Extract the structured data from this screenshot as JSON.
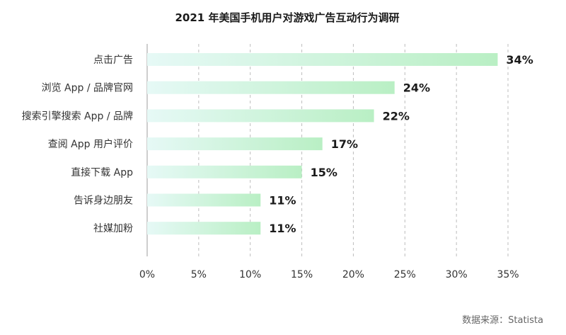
{
  "chart_data": {
    "type": "bar",
    "orientation": "horizontal",
    "title": "2021 年美国手机用户对游戏广告互动行为调研",
    "categories": [
      "点击广告",
      "浏览 App / 品牌官网",
      "搜索引擎搜索 App / 品牌",
      "查阅 App 用户评价",
      "直接下载 App",
      "告诉身边朋友",
      "社媒加粉"
    ],
    "values": [
      34,
      24,
      22,
      17,
      15,
      11,
      11
    ],
    "value_labels": [
      "34%",
      "24%",
      "22%",
      "17%",
      "15%",
      "11%",
      "11%"
    ],
    "xlim": [
      0,
      35
    ],
    "x_ticks": [
      0,
      5,
      10,
      15,
      20,
      25,
      30,
      35
    ],
    "x_tick_labels": [
      "0%",
      "5%",
      "10%",
      "15%",
      "20%",
      "25%",
      "30%",
      "35%"
    ],
    "grid": true,
    "colors": {
      "bar_start": "#e6f9f6",
      "bar_end": "#b9efc4",
      "grid": "#bdbdbd"
    }
  },
  "source": "数据来源：Statista"
}
